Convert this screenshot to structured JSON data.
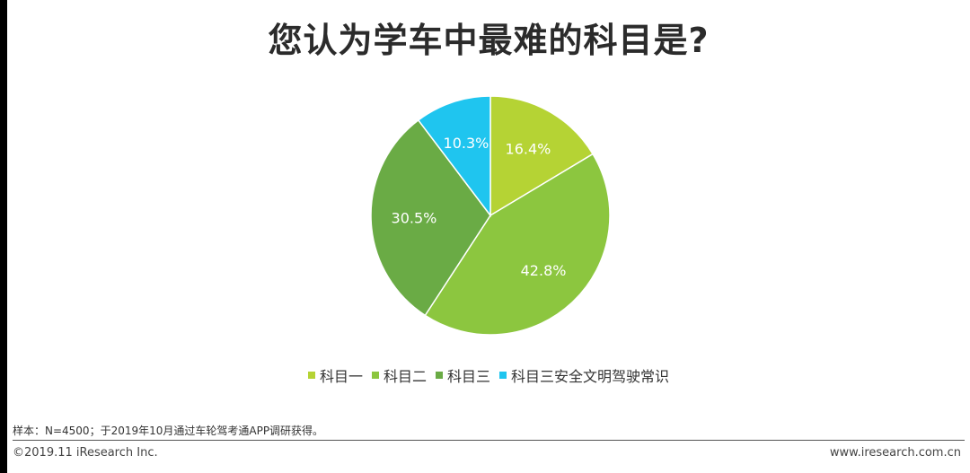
{
  "title": "您认为学车中最难的科目是?",
  "chart_data": {
    "type": "pie",
    "title": "您认为学车中最难的科目是?",
    "categories": [
      "科目一",
      "科目二",
      "科目三",
      "科目三安全文明驾驶常识"
    ],
    "values": [
      16.4,
      42.8,
      30.5,
      10.3
    ],
    "labels": [
      "16.4%",
      "42.8%",
      "30.5%",
      "10.3%"
    ],
    "colors": [
      "#b5d334",
      "#8cc63f",
      "#6aab45",
      "#1fc5ef"
    ],
    "legend_position": "bottom"
  },
  "legend": [
    {
      "label": "科目一",
      "color": "#b5d334"
    },
    {
      "label": "科目二",
      "color": "#8cc63f"
    },
    {
      "label": "科目三",
      "color": "#6aab45"
    },
    {
      "label": "科目三安全文明驾驶常识",
      "color": "#1fc5ef"
    }
  ],
  "note": "样本：N=4500；于2019年10月通过车轮驾考通APP调研获得。",
  "footer": {
    "copyright": "©2019.11 iResearch Inc.",
    "website": "www.iresearch.com.cn"
  }
}
